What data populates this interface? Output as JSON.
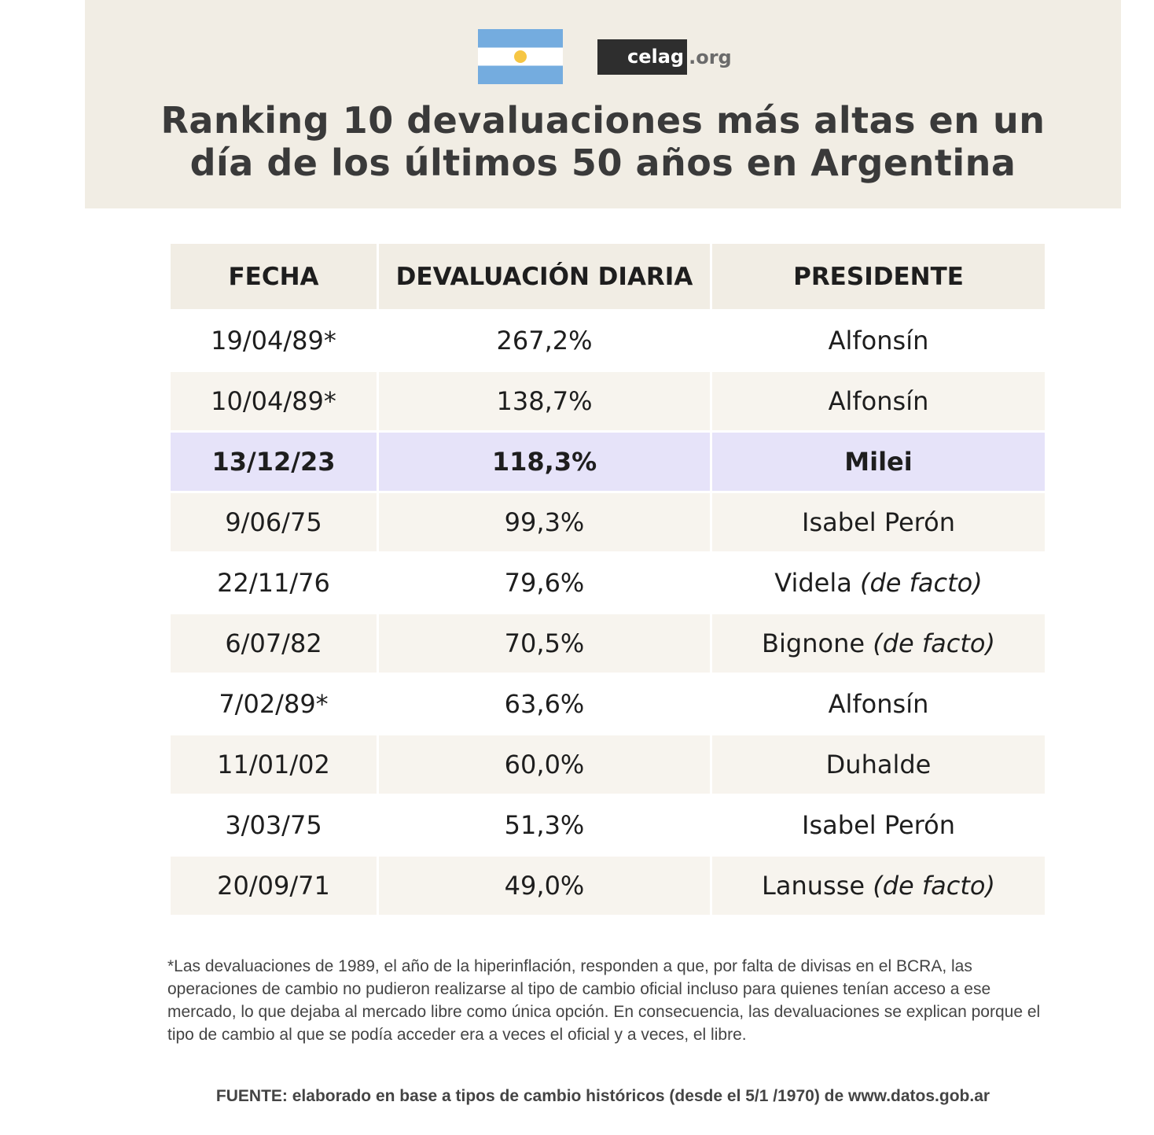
{
  "logo": {
    "brand": "celag",
    "suffix": ".org",
    "flag": "argentina-flag-icon"
  },
  "title_lines": [
    "Ranking 10 devaluaciones más altas en un",
    "día de los últimos 50 años en Argentina"
  ],
  "colors": {
    "header_band": "#f1ede4",
    "highlight_row": "#e6e3f9",
    "text": "#1e1e1e"
  },
  "chart_data": {
    "type": "table",
    "title": "Ranking 10 devaluaciones más altas en un día de los últimos 50 años en Argentina",
    "columns": [
      "FECHA",
      "DEVALUACIÓN DIARIA",
      "PRESIDENTE"
    ],
    "rows": [
      {
        "fecha": "19/04/89*",
        "devaluacion": "267,2%",
        "value": 267.2,
        "presidente": "Alfonsín",
        "nota": ""
      },
      {
        "fecha": "10/04/89*",
        "devaluacion": "138,7%",
        "value": 138.7,
        "presidente": "Alfonsín",
        "nota": ""
      },
      {
        "fecha": "13/12/23",
        "devaluacion": "118,3%",
        "value": 118.3,
        "presidente": "Milei",
        "nota": "",
        "highlight": true
      },
      {
        "fecha": "9/06/75",
        "devaluacion": "99,3%",
        "value": 99.3,
        "presidente": "Isabel Perón",
        "nota": ""
      },
      {
        "fecha": "22/11/76",
        "devaluacion": "79,6%",
        "value": 79.6,
        "presidente": "Videla",
        "nota": "(de facto)"
      },
      {
        "fecha": "6/07/82",
        "devaluacion": "70,5%",
        "value": 70.5,
        "presidente": "Bignone",
        "nota": "(de facto)"
      },
      {
        "fecha": "7/02/89*",
        "devaluacion": "63,6%",
        "value": 63.6,
        "presidente": "Alfonsín",
        "nota": ""
      },
      {
        "fecha": "11/01/02",
        "devaluacion": "60,0%",
        "value": 60.0,
        "presidente": "Duhalde",
        "nota": ""
      },
      {
        "fecha": "3/03/75",
        "devaluacion": "51,3%",
        "value": 51.3,
        "presidente": "Isabel Perón",
        "nota": ""
      },
      {
        "fecha": "20/09/71",
        "devaluacion": "49,0%",
        "value": 49.0,
        "presidente": "Lanusse",
        "nota": "(de facto)"
      }
    ]
  },
  "footnote": "*Las devaluaciones de 1989, el año de la hiperinflación, responden a que, por falta de divisas en el BCRA, las operaciones de cambio no pudieron realizarse al tipo de cambio oficial incluso para quienes tenían acceso a ese mercado, lo que dejaba al mercado libre como única opción. En consecuencia, las devaluaciones se explican porque el tipo de cambio al que se podía acceder era a veces el oficial y a veces, el libre.",
  "source": "FUENTE: elaborado en base a tipos de cambio históricos (desde el 5/1 /1970) de www.datos.gob.ar"
}
